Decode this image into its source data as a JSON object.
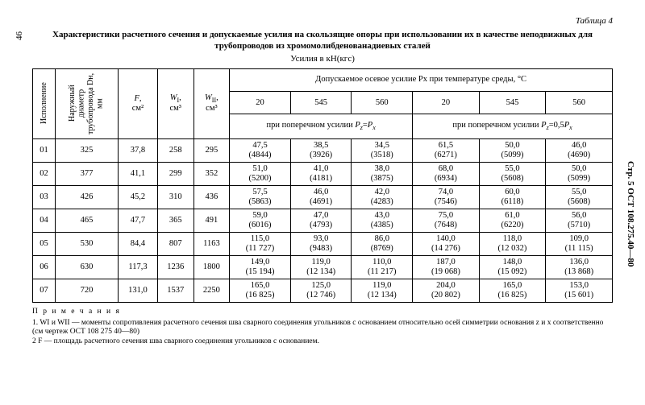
{
  "page_left": "46",
  "page_right": "Стр. 5   ОСТ 108.275.40—80",
  "table_label": "Таблица 4",
  "title": "Характеристики расчетного сечения и допускаемые усилия на скользящие опоры при использовании их в качестве неподвижных для трубопроводов из хромомолибденованадиевых сталей",
  "subtitle": "Усилия в кН(кгс)",
  "headers": {
    "col1": "Исполнение",
    "col2": "Наружный диаметр трубопровода Dн, мм",
    "col3": "F, см²",
    "col4": "WI, см³",
    "col5": "WII, см³",
    "axial_group": "Допускаемое осевое усилие Px при температуре среды, °C",
    "t20": "20",
    "t545": "545",
    "t560": "560",
    "sub_left": "при поперечном усилии Pz=Px",
    "sub_right": "при поперечном усилии Pz=0,5Px"
  },
  "rows": [
    {
      "c1": "01",
      "c2": "325",
      "c3": "37,8",
      "c4": "258",
      "c5": "295",
      "a1": "47,5",
      "a1p": "(4844)",
      "a2": "38,5",
      "a2p": "(3926)",
      "a3": "34,5",
      "a3p": "(3518)",
      "b1": "61,5",
      "b1p": "(6271)",
      "b2": "50,0",
      "b2p": "(5099)",
      "b3": "46,0",
      "b3p": "(4690)"
    },
    {
      "c1": "02",
      "c2": "377",
      "c3": "41,1",
      "c4": "299",
      "c5": "352",
      "a1": "51,0",
      "a1p": "(5200)",
      "a2": "41,0",
      "a2p": "(4181)",
      "a3": "38,0",
      "a3p": "(3875)",
      "b1": "68,0",
      "b1p": "(6934)",
      "b2": "55,0",
      "b2p": "(5608)",
      "b3": "50,0",
      "b3p": "(5099)"
    },
    {
      "c1": "03",
      "c2": "426",
      "c3": "45,2",
      "c4": "310",
      "c5": "436",
      "a1": "57,5",
      "a1p": "(5863)",
      "a2": "46,0",
      "a2p": "(4691)",
      "a3": "42,0",
      "a3p": "(4283)",
      "b1": "74,0",
      "b1p": "(7546)",
      "b2": "60,0",
      "b2p": "(6118)",
      "b3": "55,0",
      "b3p": "(5608)"
    },
    {
      "c1": "04",
      "c2": "465",
      "c3": "47,7",
      "c4": "365",
      "c5": "491",
      "a1": "59,0",
      "a1p": "(6016)",
      "a2": "47,0",
      "a2p": "(4793)",
      "a3": "43,0",
      "a3p": "(4385)",
      "b1": "75,0",
      "b1p": "(7648)",
      "b2": "61,0",
      "b2p": "(6220)",
      "b3": "56,0",
      "b3p": "(5710)"
    },
    {
      "c1": "05",
      "c2": "530",
      "c3": "84,4",
      "c4": "807",
      "c5": "1163",
      "a1": "115,0",
      "a1p": "(11 727)",
      "a2": "93,0",
      "a2p": "(9483)",
      "a3": "86,0",
      "a3p": "(8769)",
      "b1": "140,0",
      "b1p": "(14 276)",
      "b2": "118,0",
      "b2p": "(12 032)",
      "b3": "109,0",
      "b3p": "(11 115)"
    },
    {
      "c1": "06",
      "c2": "630",
      "c3": "117,3",
      "c4": "1236",
      "c5": "1800",
      "a1": "149,0",
      "a1p": "(15 194)",
      "a2": "119,0",
      "a2p": "(12 134)",
      "a3": "110,0",
      "a3p": "(11 217)",
      "b1": "187,0",
      "b1p": "(19 068)",
      "b2": "148,0",
      "b2p": "(15 092)",
      "b3": "136,0",
      "b3p": "(13 868)"
    },
    {
      "c1": "07",
      "c2": "720",
      "c3": "131,0",
      "c4": "1537",
      "c5": "2250",
      "a1": "165,0",
      "a1p": "(16 825)",
      "a2": "125,0",
      "a2p": "(12 746)",
      "a3": "119,0",
      "a3p": "(12 134)",
      "b1": "204,0",
      "b1p": "(20 802)",
      "b2": "165,0",
      "b2p": "(16 825)",
      "b3": "153,0",
      "b3p": "(15 601)"
    }
  ],
  "notes": {
    "heading": "П р и м е ч а н и я",
    "n1": "1. WI и WII — моменты сопротивления расчетного сечения шва сварного соединения угольников с основанием относительно осей симметрии основания z и x соответственно (см чертеж ОСТ 108 275 40—80)",
    "n2": "2 F — площадь расчетного сечения шва сварного соединения угольников с основанием."
  }
}
